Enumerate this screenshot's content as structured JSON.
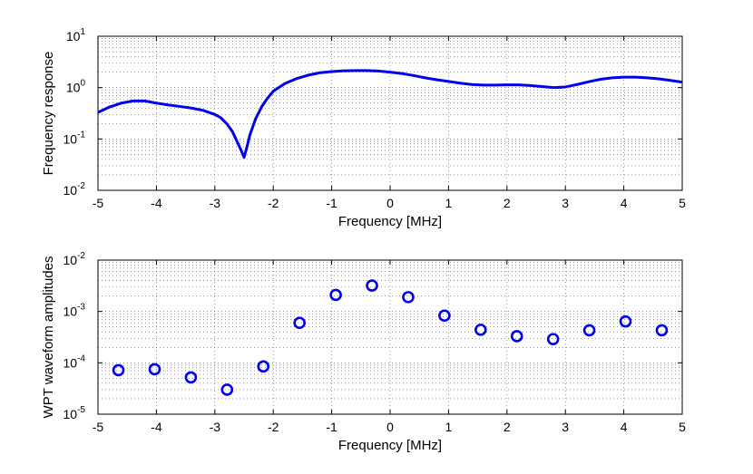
{
  "chart_data": [
    {
      "type": "line",
      "xlabel": "Frequency [MHz]",
      "ylabel": "Frequency response",
      "xlim": [
        -5,
        5
      ],
      "ylim": [
        0.01,
        10
      ],
      "yscale": "log",
      "grid": true,
      "color": "#0000ee",
      "xticks": [
        "-5",
        "-4",
        "-3",
        "-2",
        "-1",
        "0",
        "1",
        "2",
        "3",
        "4",
        "5"
      ],
      "yticks": [
        {
          "base": "10",
          "exp": "-2"
        },
        {
          "base": "10",
          "exp": "-1"
        },
        {
          "base": "10",
          "exp": "0"
        },
        {
          "base": "10",
          "exp": "1"
        }
      ],
      "x": [
        -5,
        -4.8,
        -4.6,
        -4.4,
        -4.2,
        -4,
        -3.8,
        -3.6,
        -3.4,
        -3.2,
        -3,
        -2.9,
        -2.8,
        -2.7,
        -2.6,
        -2.55,
        -2.5,
        -2.45,
        -2.4,
        -2.3,
        -2.2,
        -2.1,
        -2,
        -1.8,
        -1.6,
        -1.4,
        -1.2,
        -1,
        -0.8,
        -0.6,
        -0.4,
        -0.2,
        0,
        0.2,
        0.4,
        0.6,
        0.8,
        1,
        1.2,
        1.4,
        1.6,
        1.8,
        2,
        2.2,
        2.4,
        2.6,
        2.8,
        3,
        3.2,
        3.4,
        3.6,
        3.8,
        4,
        4.2,
        4.4,
        4.6,
        4.8,
        5
      ],
      "y": [
        0.33,
        0.42,
        0.5,
        0.55,
        0.55,
        0.5,
        0.46,
        0.43,
        0.4,
        0.36,
        0.3,
        0.26,
        0.2,
        0.14,
        0.08,
        0.06,
        0.044,
        0.07,
        0.12,
        0.25,
        0.42,
        0.62,
        0.85,
        1.2,
        1.5,
        1.75,
        1.95,
        2.05,
        2.12,
        2.15,
        2.15,
        2.1,
        2.0,
        1.88,
        1.72,
        1.55,
        1.42,
        1.32,
        1.22,
        1.15,
        1.12,
        1.12,
        1.13,
        1.13,
        1.1,
        1.05,
        1.0,
        1.03,
        1.15,
        1.3,
        1.45,
        1.55,
        1.6,
        1.6,
        1.55,
        1.48,
        1.38,
        1.28
      ]
    },
    {
      "type": "scatter",
      "xlabel": "Frequency [MHz]",
      "ylabel": "WPT waveform amplitudes",
      "xlim": [
        -5,
        5
      ],
      "ylim": [
        1e-05,
        0.01
      ],
      "yscale": "log",
      "grid": true,
      "color": "#0000ee",
      "marker": "circle",
      "xticks": [
        "-5",
        "-4",
        "-3",
        "-2",
        "-1",
        "0",
        "1",
        "2",
        "3",
        "4",
        "5"
      ],
      "yticks": [
        {
          "base": "10",
          "exp": "-5"
        },
        {
          "base": "10",
          "exp": "-4"
        },
        {
          "base": "10",
          "exp": "-3"
        },
        {
          "base": "10",
          "exp": "-2"
        }
      ],
      "x": [
        -4.65,
        -4.03,
        -3.41,
        -2.79,
        -2.17,
        -1.55,
        -0.93,
        -0.31,
        0.31,
        0.93,
        1.55,
        2.17,
        2.79,
        3.41,
        4.03,
        4.65
      ],
      "y": [
        7.2e-05,
        7.5e-05,
        5.2e-05,
        3e-05,
        8.5e-05,
        0.0006,
        0.0021,
        0.0032,
        0.0019,
        0.00083,
        0.00044,
        0.00033,
        0.00029,
        0.00043,
        0.00064,
        0.00043
      ]
    }
  ]
}
